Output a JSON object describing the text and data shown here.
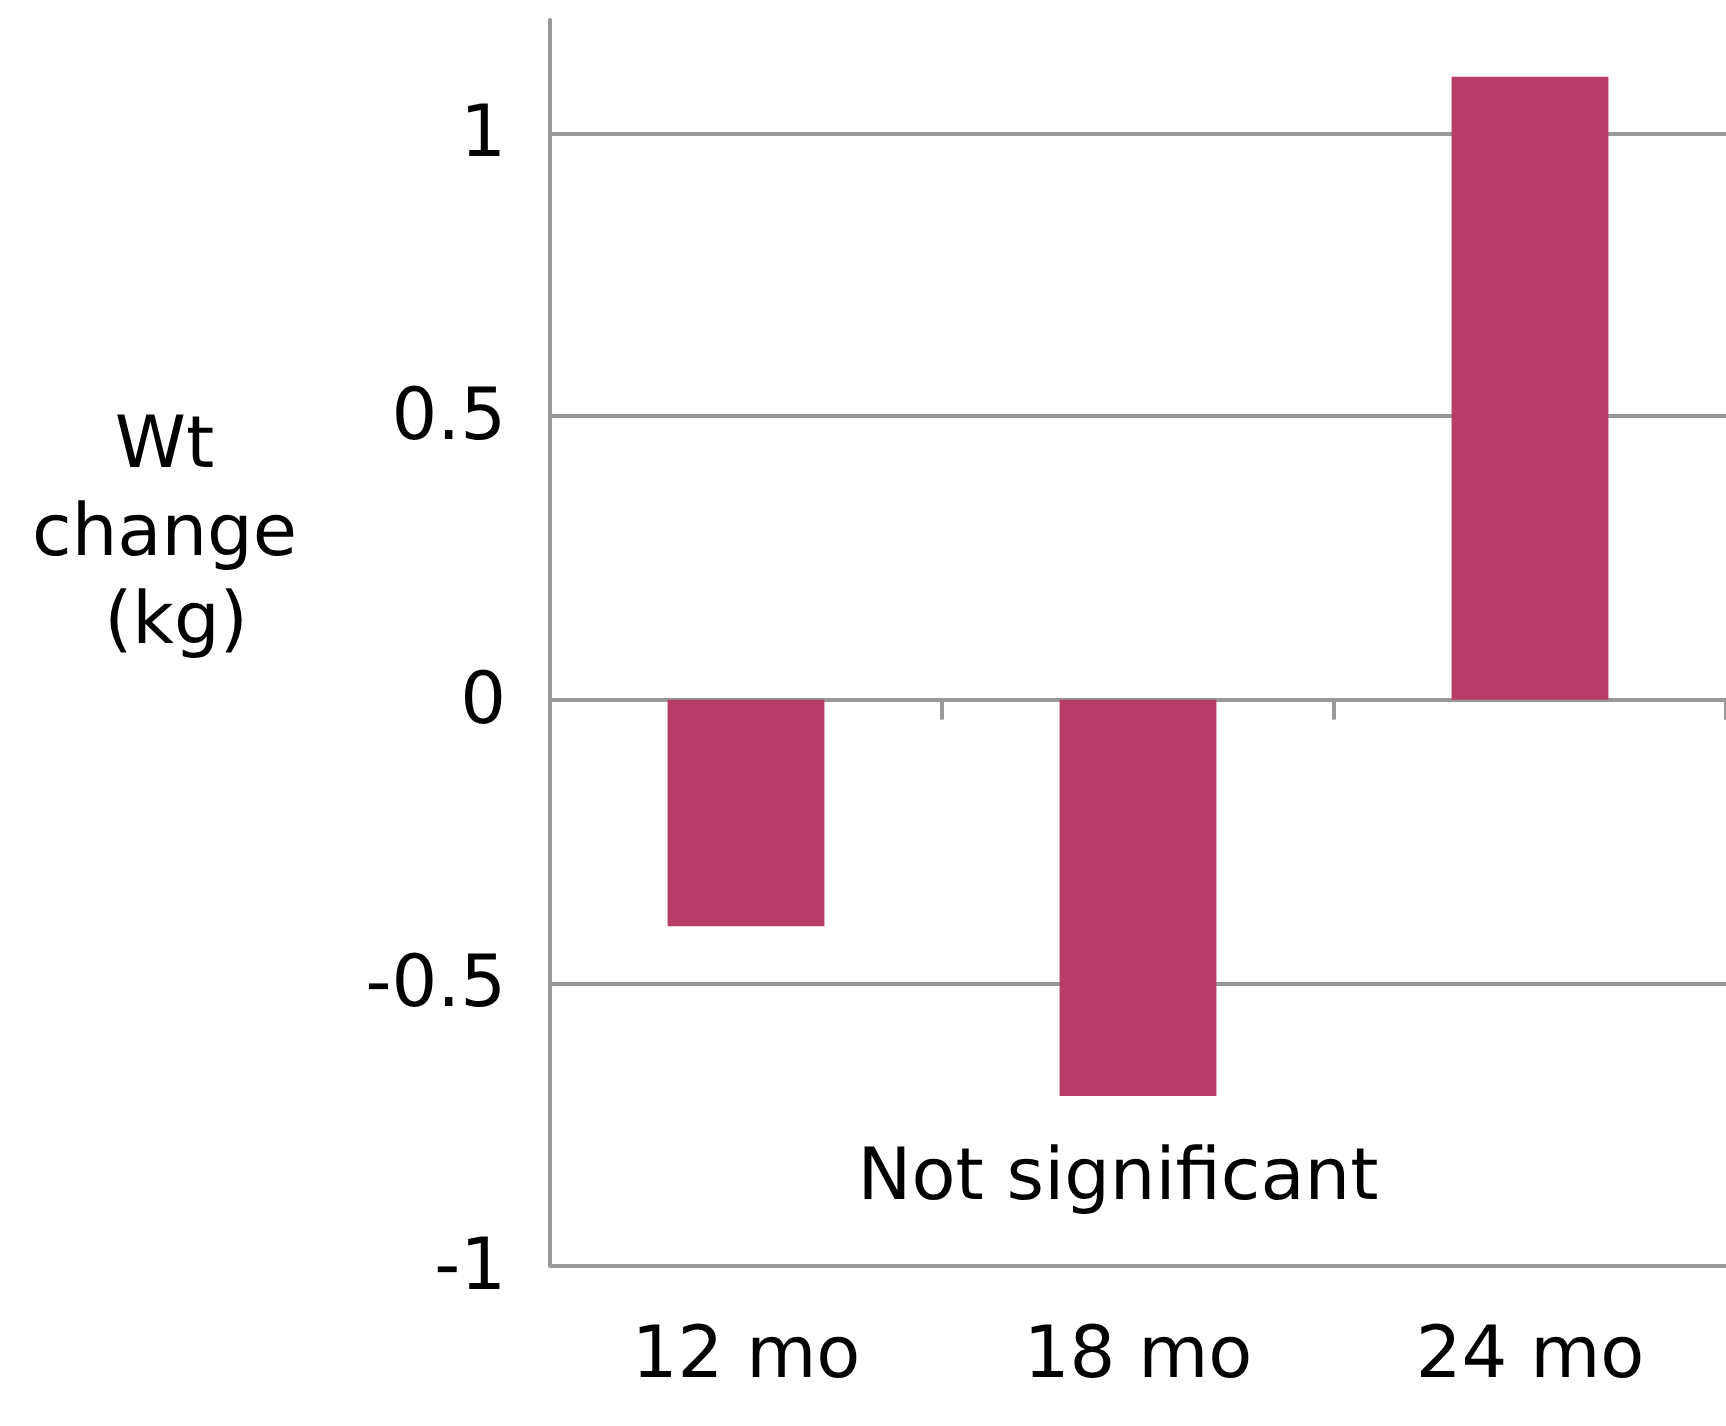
{
  "chart_data": {
    "type": "bar",
    "ylabel": "Wt change (kg)",
    "categories": [
      "12 mo",
      "18 mo",
      "24 mo"
    ],
    "series": [
      {
        "color": "#b83c68",
        "values": [
          -0.4,
          -0.7,
          1.1
        ]
      }
    ],
    "ylim": [
      -1,
      1.2
    ],
    "yticks": [
      -1,
      -0.5,
      0,
      0.5,
      1
    ],
    "grid": "y",
    "annotations": [
      "Not significant"
    ]
  }
}
